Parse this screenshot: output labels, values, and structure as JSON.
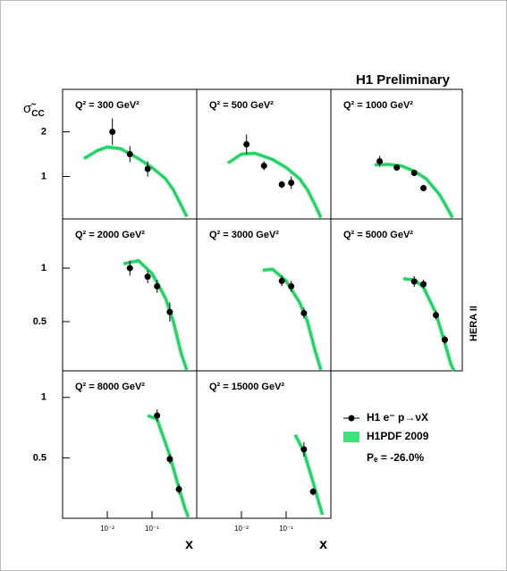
{
  "title": "H1 Preliminary",
  "side_label": "HERA II",
  "ylabel_main": "σ̃",
  "ylabel_sub": "CC",
  "legend": {
    "points": "H1 e⁻ p→νX",
    "band": "H1PDF 2009",
    "note": "Pₑ = -26.0%"
  },
  "band_color": "#3de27d",
  "line_color": "#1fb85a",
  "point_color": "#000000",
  "chart_data": [
    {
      "type": "scatter",
      "title": "Q² = 300 GeV²",
      "xlog": true,
      "xlim": [
        0.001,
        1
      ],
      "ylim": [
        0.05,
        2.95
      ],
      "yticks": [
        1,
        2
      ],
      "x": [
        0.013,
        0.032,
        0.08
      ],
      "values": [
        2.0,
        1.5,
        1.17
      ],
      "errors": [
        0.3,
        0.18,
        0.17
      ],
      "curve": {
        "x": [
          0.003,
          0.006,
          0.01,
          0.02,
          0.05,
          0.1,
          0.2,
          0.3,
          0.45,
          0.6
        ],
        "values": [
          1.4,
          1.58,
          1.66,
          1.62,
          1.4,
          1.2,
          0.95,
          0.7,
          0.35,
          0.1
        ]
      }
    },
    {
      "type": "scatter",
      "title": "Q² = 500 GeV²",
      "xlog": true,
      "xlim": [
        0.001,
        1
      ],
      "ylim": [
        0.05,
        2.95
      ],
      "x": [
        0.013,
        0.032,
        0.08,
        0.13
      ],
      "values": [
        1.72,
        1.24,
        0.82,
        0.86
      ],
      "errors": [
        0.22,
        0.1,
        0.08,
        0.14
      ],
      "curve": {
        "x": [
          0.005,
          0.01,
          0.02,
          0.05,
          0.1,
          0.2,
          0.3,
          0.45,
          0.6
        ],
        "values": [
          1.3,
          1.5,
          1.52,
          1.38,
          1.2,
          0.95,
          0.7,
          0.35,
          0.08
        ]
      }
    },
    {
      "type": "scatter",
      "title": "Q² = 1000 GeV²",
      "xlog": true,
      "xlim": [
        0.001,
        1
      ],
      "ylim": [
        0.05,
        2.95
      ],
      "x": [
        0.013,
        0.032,
        0.08,
        0.13
      ],
      "values": [
        1.34,
        1.2,
        1.08,
        0.74
      ],
      "errors": [
        0.12,
        0.05,
        0.04,
        0.07
      ],
      "curve": {
        "x": [
          0.01,
          0.02,
          0.04,
          0.08,
          0.15,
          0.3,
          0.45,
          0.6
        ],
        "values": [
          1.26,
          1.27,
          1.24,
          1.12,
          0.95,
          0.6,
          0.3,
          0.08
        ]
      }
    },
    {
      "type": "scatter",
      "title": "Q² = 2000 GeV²",
      "xlog": true,
      "xlim": [
        0.001,
        1
      ],
      "ylim": [
        0.04,
        1.46
      ],
      "yticks": [
        0.5,
        1
      ],
      "x": [
        0.032,
        0.08,
        0.13,
        0.25
      ],
      "values": [
        1.0,
        0.92,
        0.83,
        0.59
      ],
      "errors": [
        0.07,
        0.06,
        0.06,
        0.09
      ],
      "curve": {
        "x": [
          0.023,
          0.05,
          0.1,
          0.2,
          0.3,
          0.45,
          0.6
        ],
        "values": [
          1.04,
          1.07,
          0.95,
          0.72,
          0.5,
          0.2,
          0.05
        ]
      }
    },
    {
      "type": "scatter",
      "title": "Q² = 3000 GeV²",
      "xlog": true,
      "xlim": [
        0.001,
        1
      ],
      "ylim": [
        0.04,
        1.46
      ],
      "x": [
        0.08,
        0.13,
        0.25
      ],
      "values": [
        0.88,
        0.83,
        0.58
      ],
      "errors": [
        0.05,
        0.05,
        0.05
      ],
      "curve": {
        "x": [
          0.03,
          0.05,
          0.1,
          0.2,
          0.3,
          0.45,
          0.6
        ],
        "values": [
          0.98,
          0.99,
          0.88,
          0.68,
          0.5,
          0.22,
          0.05
        ]
      }
    },
    {
      "type": "scatter",
      "title": "Q² = 5000 GeV²",
      "xlog": true,
      "xlim": [
        0.001,
        1
      ],
      "ylim": [
        0.04,
        1.46
      ],
      "x": [
        0.08,
        0.13,
        0.25,
        0.4
      ],
      "values": [
        0.875,
        0.85,
        0.56,
        0.33
      ],
      "errors": [
        0.05,
        0.04,
        0.04,
        0.04
      ],
      "curve": {
        "x": [
          0.045,
          0.08,
          0.13,
          0.25,
          0.4,
          0.55,
          0.65
        ],
        "values": [
          0.9,
          0.89,
          0.82,
          0.58,
          0.3,
          0.1,
          0.04
        ]
      }
    },
    {
      "type": "scatter",
      "title": "Q² = 8000 GeV²",
      "xlog": true,
      "xlim": [
        0.001,
        1
      ],
      "ylim": [
        0,
        1.22
      ],
      "yticks": [
        0.5,
        1
      ],
      "xticks": [
        {
          "value": 0.01,
          "label": "10⁻²"
        },
        {
          "value": 0.1,
          "label": "10⁻¹"
        }
      ],
      "xlabel": "x",
      "x": [
        0.13,
        0.25,
        0.4
      ],
      "values": [
        0.85,
        0.49,
        0.24
      ],
      "errors": [
        0.05,
        0.04,
        0.04
      ],
      "curve": {
        "x": [
          0.08,
          0.13,
          0.25,
          0.4,
          0.55,
          0.65
        ],
        "values": [
          0.85,
          0.82,
          0.52,
          0.25,
          0.08,
          0.01
        ]
      }
    },
    {
      "type": "scatter",
      "title": "Q² = 15000 GeV²",
      "xlog": true,
      "xlim": [
        0.001,
        1
      ],
      "ylim": [
        0,
        1.22
      ],
      "xticks": [
        {
          "value": 0.01,
          "label": "10⁻²"
        },
        {
          "value": 0.1,
          "label": "10⁻¹"
        }
      ],
      "xlabel": "x",
      "x": [
        0.25,
        0.4
      ],
      "values": [
        0.57,
        0.22
      ],
      "errors": [
        0.06,
        0.03
      ],
      "curve": {
        "x": [
          0.16,
          0.25,
          0.4,
          0.55,
          0.65
        ],
        "values": [
          0.69,
          0.55,
          0.3,
          0.12,
          0.03
        ]
      }
    }
  ]
}
